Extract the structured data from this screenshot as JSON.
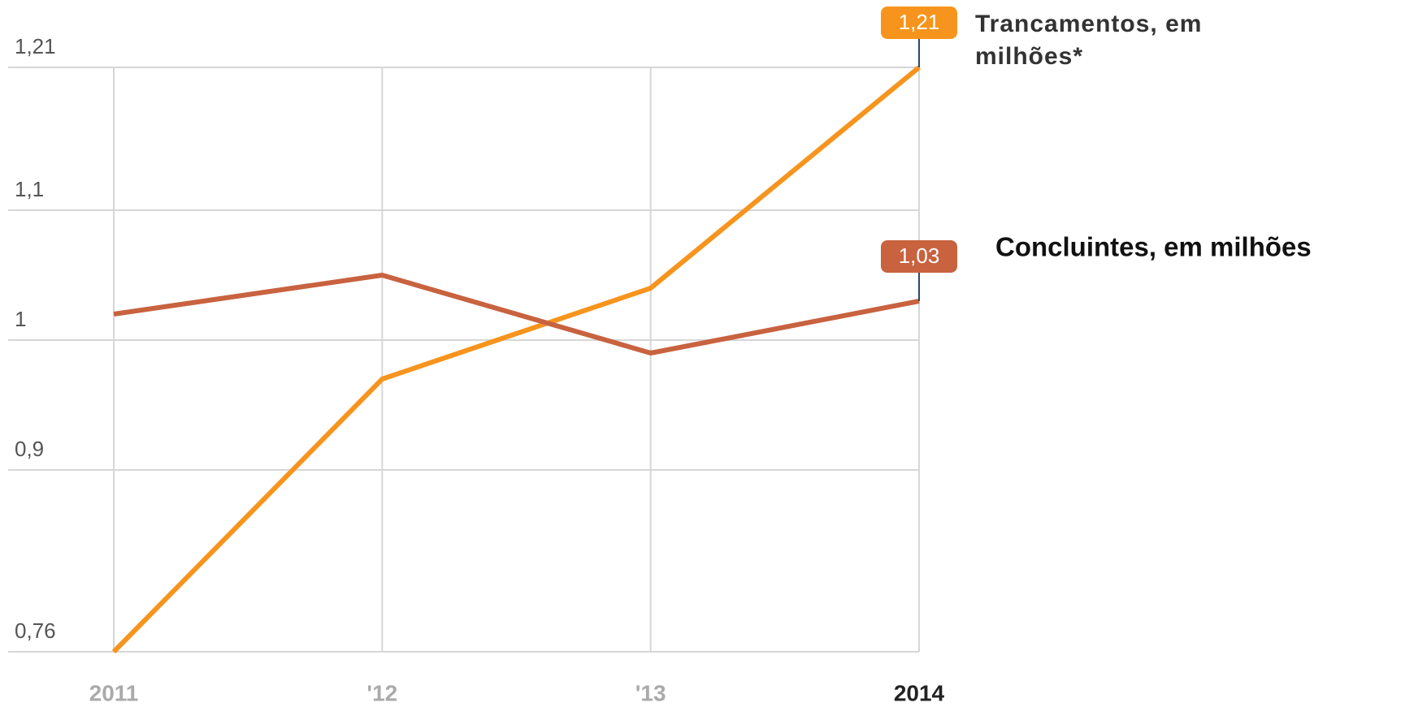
{
  "chart_data": {
    "type": "line",
    "categories": [
      "2011",
      "'12",
      "'13",
      "2014"
    ],
    "series": [
      {
        "name": "Trancamentos, em milhões*",
        "color": "#f7941d",
        "values": [
          0.76,
          0.97,
          1.04,
          1.21
        ],
        "value_labels": [
          null,
          null,
          null,
          "1,21"
        ]
      },
      {
        "name": "Concluintes, em milhões",
        "color": "#c8623f",
        "values": [
          1.02,
          1.05,
          0.99,
          1.03
        ],
        "value_labels": [
          null,
          null,
          null,
          "1,03"
        ]
      }
    ],
    "ylim": [
      0.76,
      1.21
    ],
    "yticks": [
      {
        "value": 0.76,
        "label": "0,76"
      },
      {
        "value": 0.9,
        "label": "0,9"
      },
      1,
      {
        "value": 1.1,
        "label": "1,1"
      },
      {
        "value": 1.21,
        "label": "1,21"
      }
    ],
    "grid": true
  }
}
